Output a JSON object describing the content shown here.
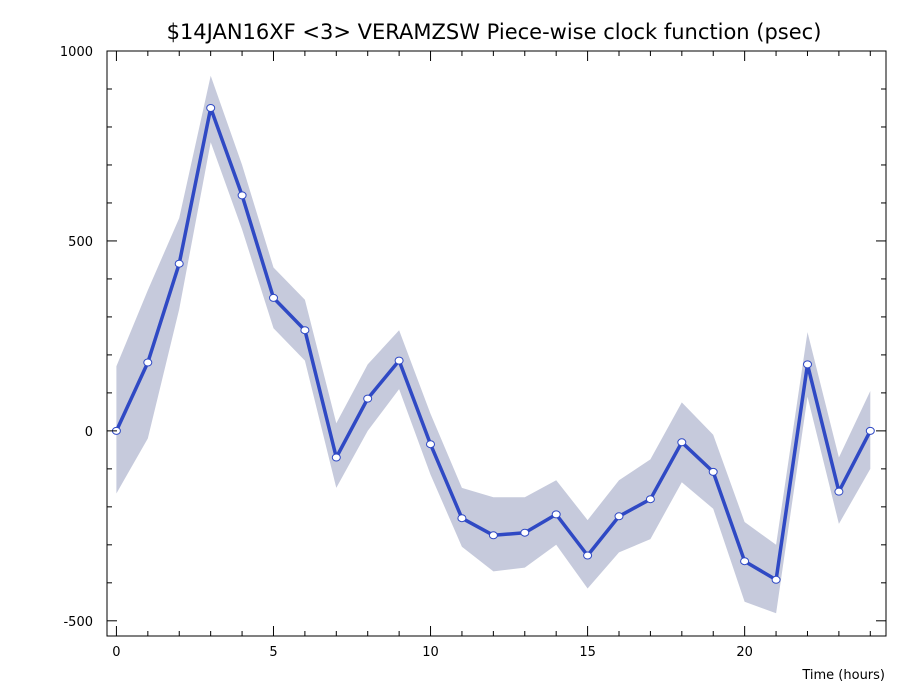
{
  "chart_data": {
    "type": "line",
    "title": "$14JAN16XF <3>  VERAMZSW  Piece-wise clock function (psec)",
    "xlabel": "Time (hours)",
    "ylabel": "",
    "xlim": [
      -0.3,
      24.5
    ],
    "ylim": [
      -540,
      1000
    ],
    "x_ticks": [
      0,
      5,
      10,
      15,
      20
    ],
    "x_tick_labels": [
      "0",
      "5",
      "10",
      "15",
      "20"
    ],
    "y_ticks": [
      -500,
      0,
      500,
      1000
    ],
    "y_tick_labels": [
      "-500",
      "0",
      "500",
      "1000"
    ],
    "grid": false,
    "legend": "none",
    "colors": {
      "line": "#2f49c4",
      "band": "#c6cadc",
      "marker_fill": "#ffffff",
      "marker_stroke": "#2f49c4"
    },
    "series": [
      {
        "x": [
          0,
          1,
          2,
          3,
          4,
          5,
          6,
          7,
          8,
          9,
          10,
          11,
          12,
          13,
          14,
          15,
          16,
          17,
          18,
          19,
          20,
          21,
          22,
          23,
          24
        ],
        "values": [
          0,
          180,
          440,
          850,
          620,
          350,
          265,
          -70,
          85,
          185,
          -35,
          -230,
          -275,
          -268,
          -220,
          -328,
          -225,
          -180,
          -30,
          -108,
          -343,
          -392,
          175,
          -160,
          0
        ],
        "upper": [
          170,
          370,
          560,
          935,
          700,
          430,
          345,
          20,
          175,
          265,
          45,
          -150,
          -175,
          -175,
          -130,
          -235,
          -130,
          -75,
          75,
          -10,
          -240,
          -300,
          260,
          -70,
          105
        ],
        "lower": [
          -165,
          -20,
          320,
          760,
          530,
          270,
          185,
          -150,
          0,
          110,
          -115,
          -305,
          -370,
          -360,
          -300,
          -415,
          -320,
          -285,
          -135,
          -205,
          -450,
          -480,
          90,
          -245,
          -100
        ]
      }
    ]
  }
}
